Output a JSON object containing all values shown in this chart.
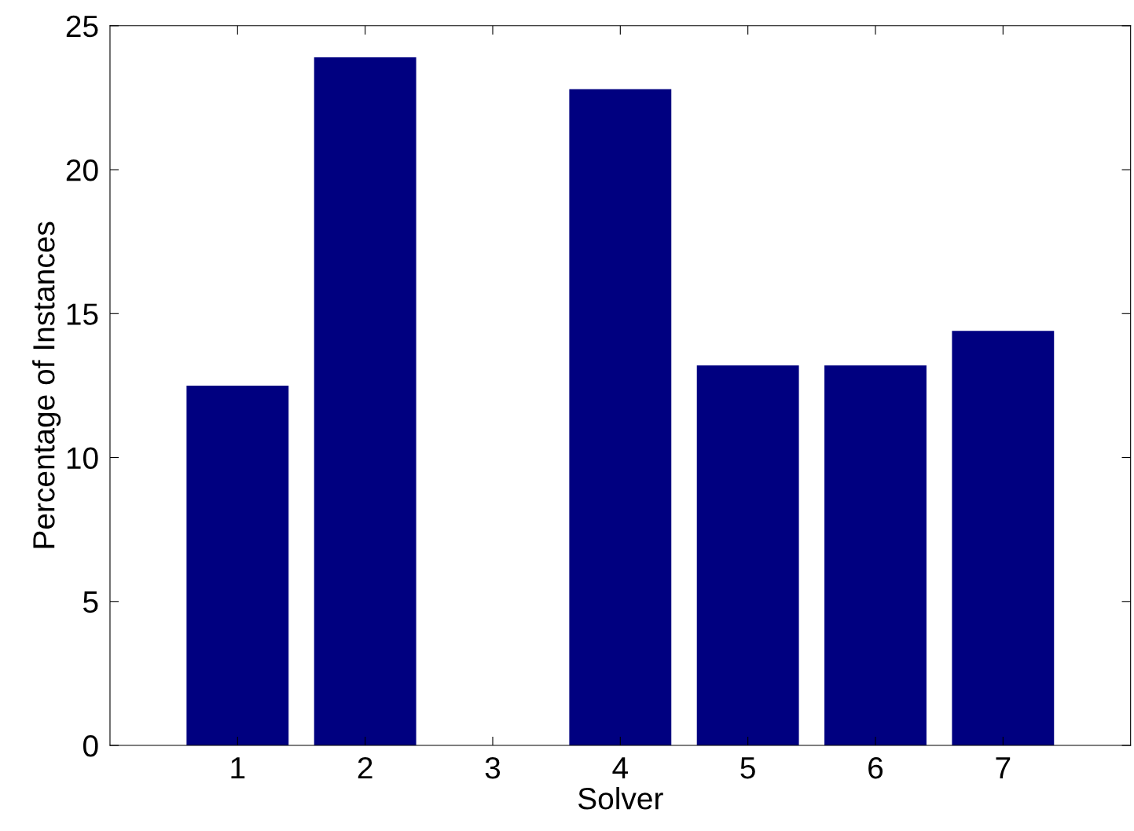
{
  "chart_data": {
    "type": "bar",
    "xlabel": "Solver",
    "ylabel": "Percentage of Instances",
    "categories": [
      "1",
      "2",
      "3",
      "4",
      "5",
      "6",
      "7"
    ],
    "values": [
      12.5,
      23.9,
      0,
      22.8,
      13.2,
      13.2,
      14.4
    ],
    "color": "#000080",
    "ylim": [
      0,
      25
    ],
    "yticks": [
      0,
      5,
      10,
      15,
      20,
      25
    ],
    "grid": false,
    "legend": false
  }
}
